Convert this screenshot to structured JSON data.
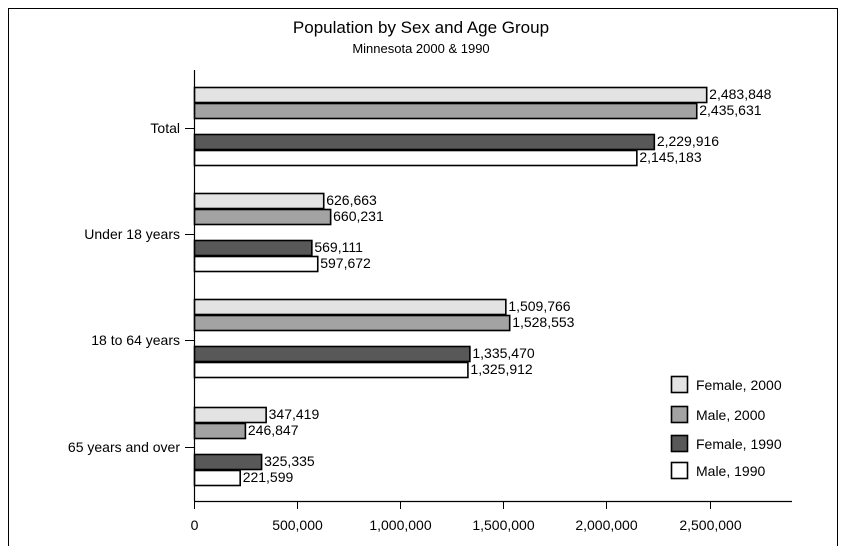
{
  "chart_data": {
    "type": "bar",
    "orientation": "horizontal",
    "title": "Population by Sex and Age Group",
    "subtitle": "Minnesota 2000 & 1990",
    "xlabel": "",
    "ylabel": "",
    "xlim": [
      0,
      2900000
    ],
    "x_ticks": [
      0,
      500000,
      1000000,
      1500000,
      2000000,
      2500000
    ],
    "x_tick_labels": [
      "0",
      "500,000",
      "1,000,000",
      "1,500,000",
      "2,000,000",
      "2,500,000"
    ],
    "categories": [
      "Total",
      "Under 18 years",
      "18 to 64 years",
      "65 years and over"
    ],
    "series": [
      {
        "name": "Female, 2000",
        "color": "#e3e3e3",
        "values": [
          2483848,
          626663,
          1509766,
          347419
        ],
        "labels": [
          "2,483,848",
          "626,663",
          "1,509,766",
          "347,419"
        ]
      },
      {
        "name": "Male, 2000",
        "color": "#a3a3a3",
        "values": [
          2435631,
          660231,
          1528553,
          246847
        ],
        "labels": [
          "2,435,631",
          "660,231",
          "1,528,553",
          "246,847"
        ]
      },
      {
        "name": "Female, 1990",
        "color": "#585858",
        "values": [
          2229916,
          569111,
          1335470,
          325335
        ],
        "labels": [
          "2,229,916",
          "569,111",
          "1,335,470",
          "325,335"
        ]
      },
      {
        "name": "Male, 1990",
        "color": "#ffffff",
        "values": [
          2145183,
          597672,
          1325912,
          221599
        ],
        "labels": [
          "2,145,183",
          "597,672",
          "1,325,912",
          "221,599"
        ]
      }
    ],
    "legend_position": "bottom-right",
    "grid": false
  }
}
